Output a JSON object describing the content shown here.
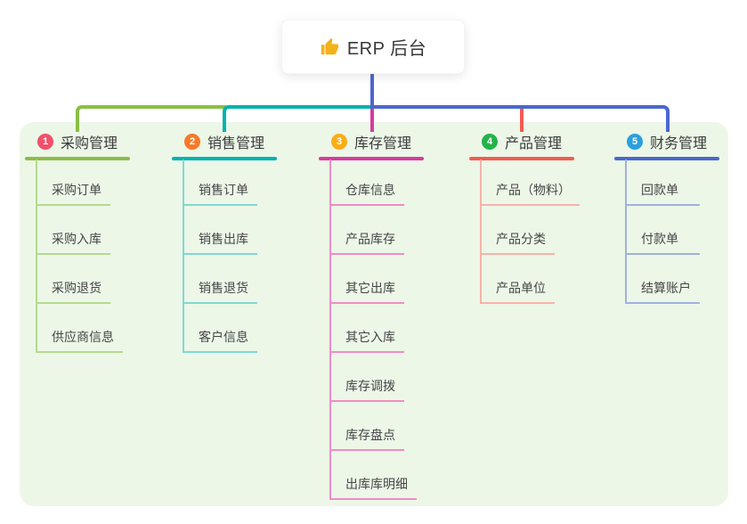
{
  "root": {
    "title": "ERP 后台",
    "icon": "thumbs-up-icon"
  },
  "branches": [
    {
      "num": "1",
      "title": "采购管理",
      "badge_color": "#f0506a",
      "line_color": "#8abf45",
      "light_line_color": "#b5da8e",
      "children": [
        "采购订单",
        "采购入库",
        "采购退货",
        "供应商信息"
      ]
    },
    {
      "num": "2",
      "title": "销售管理",
      "badge_color": "#f57a2a",
      "line_color": "#00b3ac",
      "light_line_color": "#82d8d2",
      "children": [
        "销售订单",
        "销售出库",
        "销售退货",
        "客户信息"
      ]
    },
    {
      "num": "3",
      "title": "库存管理",
      "badge_color": "#fbad16",
      "line_color": "#d93a9e",
      "light_line_color": "#f18cc4",
      "children": [
        "仓库信息",
        "产品库存",
        "其它出库",
        "其它入库",
        "库存调拨",
        "库存盘点",
        "出库库明细"
      ]
    },
    {
      "num": "4",
      "title": "产品管理",
      "badge_color": "#26b24b",
      "line_color": "#f25b50",
      "light_line_color": "#f8b2aa",
      "children": [
        "产品（物料）",
        "产品分类",
        "产品单位"
      ]
    },
    {
      "num": "5",
      "title": "财务管理",
      "badge_color": "#2aa0dc",
      "line_color": "#4a68ce",
      "light_line_color": "#9fb1de",
      "children": [
        "回款单",
        "付款单",
        "结算账户"
      ]
    }
  ],
  "colors": {
    "page_bg": "#ffffff",
    "panel_bg": "#ecf7e8",
    "root_line": "#5064cf",
    "header_text": "#3b3b3b",
    "child_text": "#464646",
    "thumb_icon": "#f3b21b"
  }
}
